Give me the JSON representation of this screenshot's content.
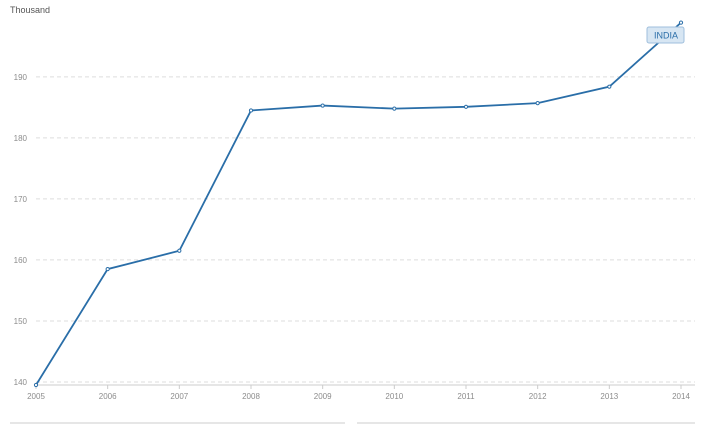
{
  "chart_data": {
    "type": "line",
    "ylabel": "Thousand",
    "x": [
      "2005",
      "2006",
      "2007",
      "2008",
      "2009",
      "2010",
      "2011",
      "2012",
      "2013",
      "2014"
    ],
    "yticks": [
      140,
      150,
      160,
      170,
      180,
      190
    ],
    "ylim": [
      139.5,
      199
    ],
    "grid": true,
    "series": [
      {
        "name": "INDIA",
        "values": [
          139.5,
          158.5,
          161.5,
          184.5,
          185.3,
          184.8,
          185.1,
          185.7,
          188.4,
          198.9
        ]
      }
    ],
    "legend_placement": "top-right",
    "colors": {
      "line": "#2a6ea8",
      "grid": "#dddddd",
      "axis": "#cccccc",
      "label_fill": "#d7e6f3",
      "label_stroke": "#9fbfdc"
    }
  }
}
